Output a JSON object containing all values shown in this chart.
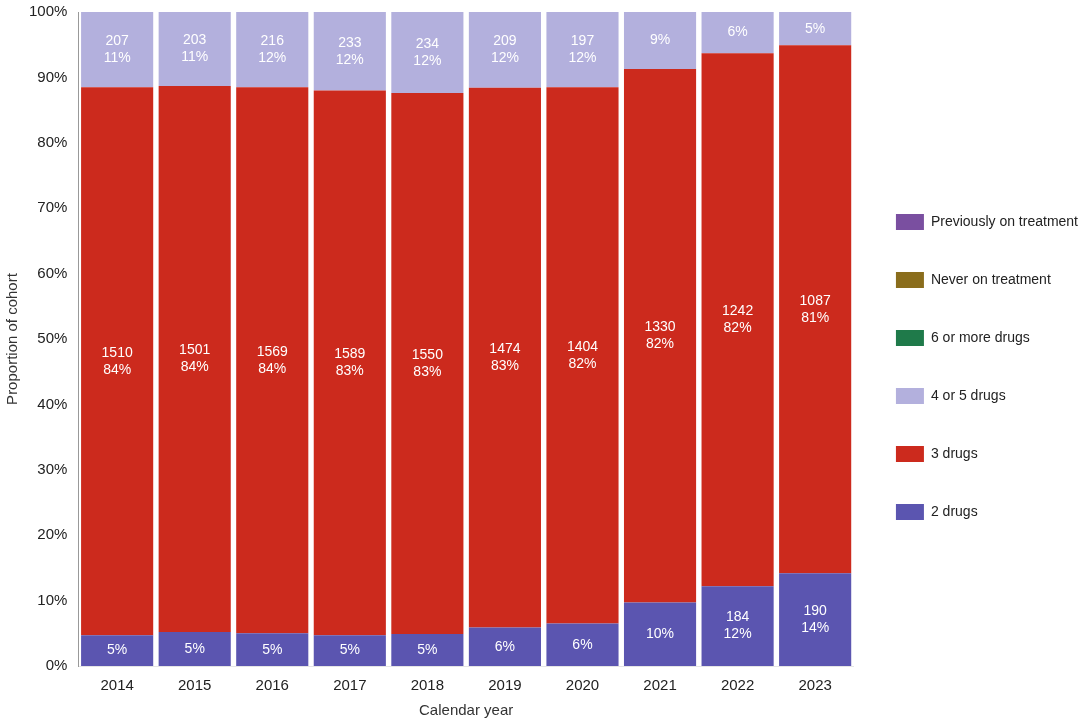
{
  "chart_data": {
    "type": "bar",
    "stacked": true,
    "xlabel": "Calendar year",
    "ylabel": "Proportion of cohort",
    "categories": [
      "2014",
      "2015",
      "2016",
      "2017",
      "2018",
      "2019",
      "2020",
      "2021",
      "2022",
      "2023"
    ],
    "series": [
      {
        "name": "2 drugs",
        "color": "#5b55b0",
        "values": [
          4.7,
          5.2,
          5.0,
          4.7,
          4.9,
          5.9,
          6.5,
          9.7,
          12.2,
          14.2
        ],
        "value_labels": [
          "5%",
          "5%",
          "5%",
          "5%",
          "5%",
          "6%",
          "6%",
          "10%",
          "184\n12%",
          "190\n14%"
        ]
      },
      {
        "name": "3 drugs",
        "color": "#cc2a1d",
        "values": [
          83.8,
          83.5,
          83.5,
          83.3,
          82.7,
          82.5,
          82.0,
          81.6,
          81.5,
          80.7
        ],
        "value_labels": [
          "1510\n84%",
          "1501\n84%",
          "1569\n84%",
          "1589\n83%",
          "1550\n83%",
          "1474\n83%",
          "1404\n82%",
          "1330\n82%",
          "1242\n82%",
          "1087\n81%"
        ]
      },
      {
        "name": "4 or 5 drugs",
        "color": "#b3b0dd",
        "values": [
          11.5,
          11.3,
          11.5,
          12.0,
          12.4,
          11.6,
          11.5,
          8.7,
          6.3,
          5.1
        ],
        "value_labels": [
          "207\n11%",
          "203\n11%",
          "216\n12%",
          "233\n12%",
          "234\n12%",
          "209\n12%",
          "197\n12%",
          "9%",
          "6%",
          "5%"
        ]
      },
      {
        "name": "6 or more drugs",
        "color": "#1f7a4a",
        "values": [
          0,
          0,
          0,
          0,
          0,
          0,
          0,
          0,
          0,
          0
        ]
      },
      {
        "name": "Never on treatment",
        "color": "#8a6d1c",
        "values": [
          0,
          0,
          0,
          0,
          0,
          0,
          0,
          0,
          0,
          0
        ]
      },
      {
        "name": "Previously on treatment",
        "color": "#7a4fa0",
        "values": [
          0,
          0,
          0,
          0,
          0,
          0,
          0,
          0,
          0,
          0
        ]
      }
    ],
    "ylim": [
      0,
      100
    ],
    "yticks": [
      {
        "value": 0,
        "label": "0%"
      },
      {
        "value": 10,
        "label": "10%"
      },
      {
        "value": 20,
        "label": "20%"
      },
      {
        "value": 30,
        "label": "30%"
      },
      {
        "value": 40,
        "label": "40%"
      },
      {
        "value": 50,
        "label": "50%"
      },
      {
        "value": 60,
        "label": "60%"
      },
      {
        "value": 70,
        "label": "70%"
      },
      {
        "value": 80,
        "label": "80%"
      },
      {
        "value": 90,
        "label": "90%"
      },
      {
        "value": 100,
        "label": "100%"
      }
    ],
    "grid": false,
    "legend": "right"
  }
}
